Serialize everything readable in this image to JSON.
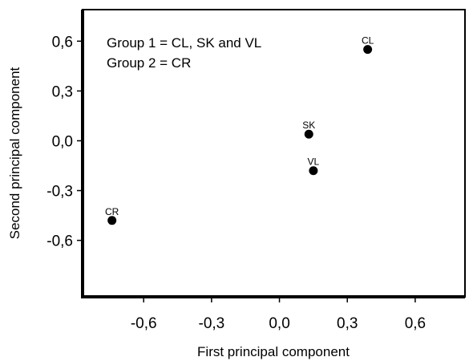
{
  "chart_data": {
    "type": "scatter",
    "title": "",
    "xlabel": "First principal component",
    "ylabel": "Second principal component",
    "xlim": [
      -0.87,
      0.82
    ],
    "ylim": [
      -0.94,
      0.79
    ],
    "xticks": [
      -0.6,
      -0.3,
      0.0,
      0.3,
      0.6
    ],
    "xtick_labels": [
      "-0,6",
      "-0,3",
      "0,0",
      "0,3",
      "0,6"
    ],
    "yticks": [
      0.6,
      0.3,
      0.0,
      -0.3,
      -0.6
    ],
    "ytick_labels": [
      "0,6",
      "0,3",
      "0,0",
      "-0,3",
      "-0,6"
    ],
    "grid": false,
    "annotations": [
      "Group 1 = CL, SK and VL",
      "Group 2 = CR"
    ],
    "points": [
      {
        "label": "CL",
        "x": 0.39,
        "y": 0.55
      },
      {
        "label": "SK",
        "x": 0.13,
        "y": 0.04
      },
      {
        "label": "VL",
        "x": 0.15,
        "y": -0.18
      },
      {
        "label": "CR",
        "x": -0.74,
        "y": -0.48
      }
    ],
    "colors": {
      "marker": "#000000",
      "axis": "#000000",
      "background": "#ffffff"
    }
  }
}
